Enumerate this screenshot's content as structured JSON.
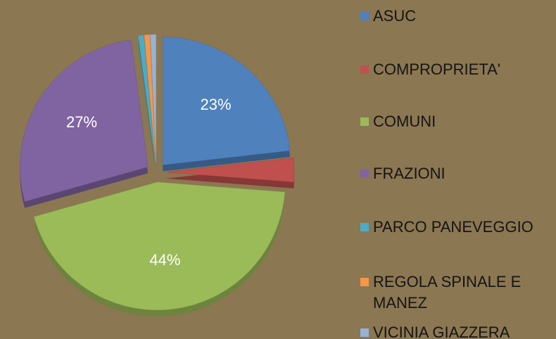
{
  "chart_data": {
    "type": "pie",
    "categories": [
      "ASUC",
      "COMPROPRIETA'",
      "COMUNI",
      "FRAZIONI",
      "PARCO PANEVEGGIO",
      "REGOLA SPINALE E MANEZ",
      "VICINIA GIAZZERA"
    ],
    "values": [
      23,
      3,
      44,
      27,
      0.7,
      0.7,
      0.7
    ],
    "value_labels": [
      "23%",
      null,
      "44%",
      "27%",
      null,
      null,
      null
    ],
    "colors": [
      "#4f81bd",
      "#c0504d",
      "#9bbb59",
      "#8064a2",
      "#4bacc6",
      "#f79646",
      "#95b3d7"
    ],
    "legend": "right"
  }
}
